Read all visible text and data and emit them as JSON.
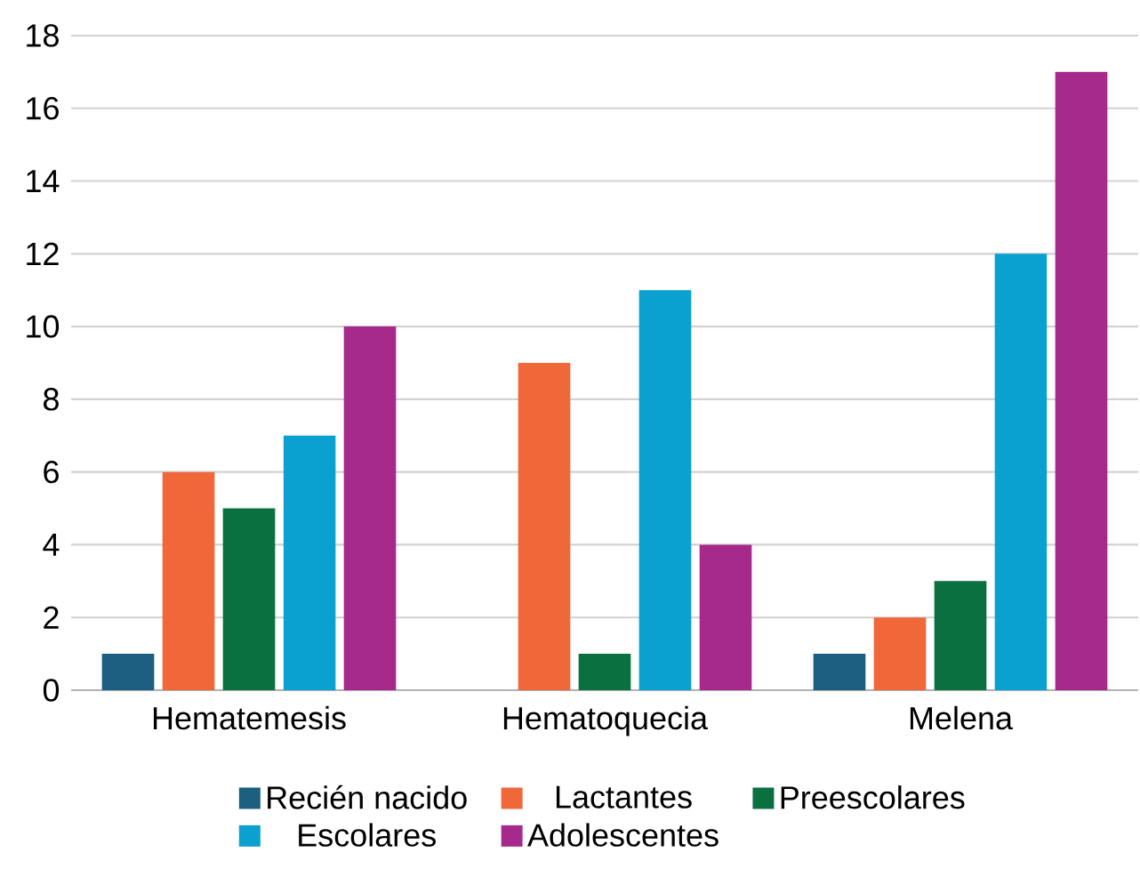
{
  "chart_data": {
    "type": "bar",
    "categories": [
      "Hematemesis",
      "Hematoquecia",
      "Melena"
    ],
    "series": [
      {
        "name": "Recién nacido",
        "color": "#1b5e80",
        "values": [
          1,
          0,
          1
        ]
      },
      {
        "name": "Lactantes",
        "color": "#f0673a",
        "values": [
          6,
          9,
          2
        ]
      },
      {
        "name": "Preescolares",
        "color": "#0b7040",
        "values": [
          5,
          1,
          3
        ]
      },
      {
        "name": "Escolares",
        "color": "#0aa0d0",
        "values": [
          7,
          11,
          12
        ]
      },
      {
        "name": "Adolescentes",
        "color": "#a52a8c",
        "values": [
          10,
          4,
          17
        ]
      }
    ],
    "ylim": [
      0,
      18
    ],
    "yticks": [
      0,
      2,
      4,
      6,
      8,
      10,
      12,
      14,
      16,
      18
    ],
    "grid": "y",
    "legend": "bottom"
  }
}
